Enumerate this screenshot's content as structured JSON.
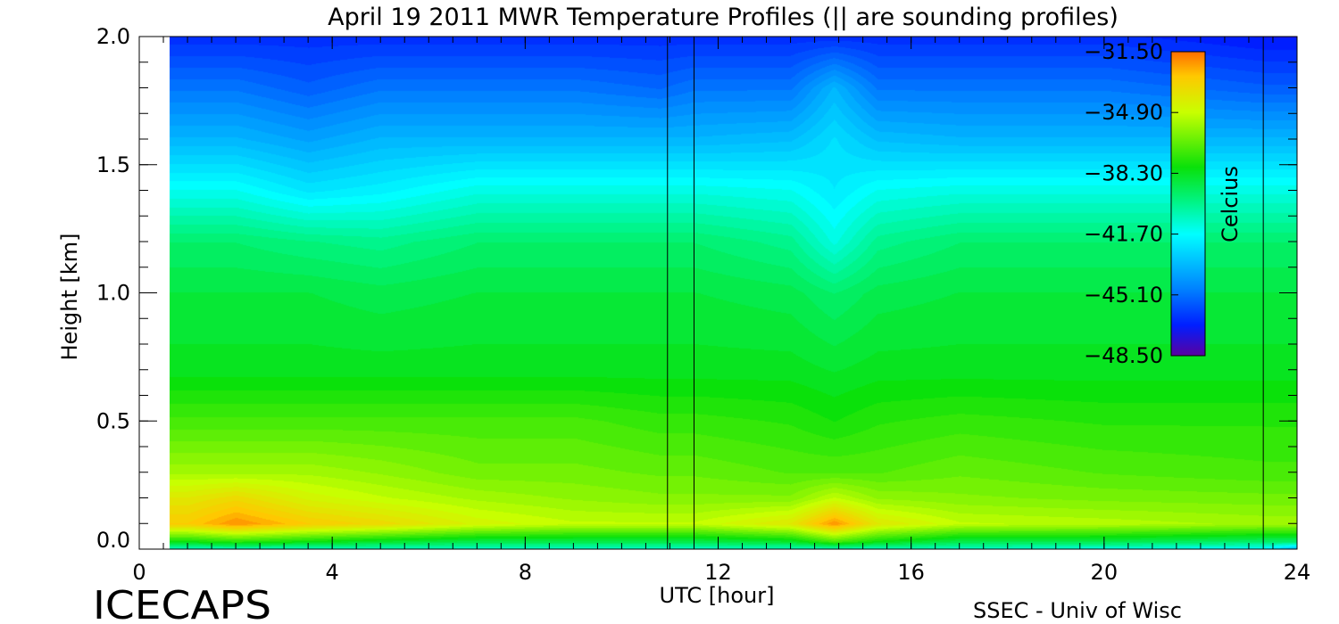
{
  "chart_data": {
    "type": "heatmap",
    "title": "April 19 2011 MWR Temperature Profiles (|| are sounding profiles)",
    "xlabel": "UTC [hour]",
    "ylabel": "Height [km]",
    "xlim": [
      0,
      24
    ],
    "ylim": [
      0,
      2
    ],
    "x_ticks": [
      "0",
      "4",
      "8",
      "12",
      "16",
      "20",
      "24"
    ],
    "y_ticks": [
      "0.0",
      "0.5",
      "1.0",
      "1.5",
      "2.0"
    ],
    "x_minor_step_hours": 0.5,
    "y_minor_step_km": 0.1,
    "data_x_range": [
      0.7,
      24
    ],
    "colorbar": {
      "label": "Celcius",
      "range": [
        -48.5,
        -31.5
      ],
      "ticks": [
        "-31.50",
        "-34.90",
        "-38.30",
        "-41.70",
        "-45.10",
        "-48.50"
      ]
    },
    "sounding_profiles": [
      {
        "x_start": 10.95,
        "x_end": 11.5
      },
      {
        "x_start": 23.3,
        "x_end": 24
      }
    ],
    "temperature_profiles": {
      "height_km": [
        0,
        0.03,
        0.1,
        0.2,
        0.3,
        0.5,
        0.7,
        1.0,
        1.2,
        1.4,
        1.6,
        1.8,
        2.0
      ],
      "times": [
        {
          "hour": 1,
          "temps": [
            -41,
            -38,
            -33,
            -34,
            -35.5,
            -37,
            -38.3,
            -38.8,
            -39.5,
            -41.5,
            -43.5,
            -45,
            -46.5
          ]
        },
        {
          "hour": 2,
          "temps": [
            -41,
            -37.5,
            -32,
            -33.5,
            -35.5,
            -37,
            -38.3,
            -38.8,
            -39.5,
            -41.5,
            -43.5,
            -45,
            -46.5
          ]
        },
        {
          "hour": 3.5,
          "temps": [
            -41,
            -38,
            -33,
            -34.5,
            -35.5,
            -37,
            -38.3,
            -38.8,
            -39.8,
            -42.3,
            -44,
            -45.5,
            -46.5
          ]
        },
        {
          "hour": 5,
          "temps": [
            -41,
            -38.5,
            -33.5,
            -35,
            -35.8,
            -37,
            -38.3,
            -39,
            -40,
            -42,
            -43.5,
            -45,
            -46.5
          ]
        },
        {
          "hour": 7,
          "temps": [
            -41,
            -39,
            -34.5,
            -35.5,
            -36.3,
            -37,
            -38.3,
            -38.8,
            -39.5,
            -41.3,
            -43.5,
            -45,
            -46.5
          ]
        },
        {
          "hour": 9,
          "temps": [
            -41,
            -39,
            -35,
            -35.8,
            -36.3,
            -37,
            -38.3,
            -38.8,
            -39.5,
            -41.3,
            -43.5,
            -45,
            -46.5
          ]
        },
        {
          "hour": 10.8,
          "temps": [
            -41,
            -39,
            -35,
            -36,
            -36.5,
            -37.3,
            -38.3,
            -38.8,
            -39.5,
            -41.3,
            -43.5,
            -45.3,
            -46.5
          ]
        },
        {
          "hour": 11.5,
          "temps": [
            -41,
            -39,
            -35,
            -36,
            -36.5,
            -37.3,
            -38.3,
            -38.8,
            -39.5,
            -41.3,
            -43.5,
            -45,
            -46.5
          ]
        },
        {
          "hour": 13.5,
          "temps": [
            -41,
            -38.5,
            -34,
            -36,
            -36.8,
            -37.5,
            -38.3,
            -39,
            -40,
            -41.5,
            -43.3,
            -45,
            -46.5
          ]
        },
        {
          "hour": 14.4,
          "temps": [
            -41,
            -37,
            -32,
            -35,
            -36.8,
            -37.8,
            -38.5,
            -39.5,
            -41.3,
            -42.2,
            -42.5,
            -43.5,
            -46.5
          ]
        },
        {
          "hour": 15.3,
          "temps": [
            -41,
            -38,
            -34,
            -35.8,
            -36.8,
            -37.5,
            -38.3,
            -39,
            -40,
            -41.5,
            -43.3,
            -45,
            -46.5
          ]
        },
        {
          "hour": 17,
          "temps": [
            -41,
            -39,
            -35,
            -36,
            -36.5,
            -37.3,
            -38.3,
            -38.8,
            -39.5,
            -41.3,
            -43.5,
            -45,
            -46.5
          ]
        },
        {
          "hour": 20,
          "temps": [
            -41.5,
            -39,
            -35.2,
            -36.2,
            -36.8,
            -37.5,
            -38.3,
            -38.8,
            -39.5,
            -41.3,
            -43.5,
            -45,
            -46.5
          ]
        },
        {
          "hour": 23.3,
          "temps": [
            -42,
            -39.5,
            -35.5,
            -36.3,
            -37,
            -37.5,
            -38.3,
            -38.8,
            -39.5,
            -41.3,
            -43.5,
            -45.5,
            -47
          ]
        },
        {
          "hour": 24,
          "temps": [
            -44,
            -39.5,
            -35.5,
            -36.3,
            -37,
            -37.5,
            -38.3,
            -38.8,
            -39.5,
            -41.3,
            -43.5,
            -45.5,
            -47
          ]
        }
      ]
    }
  },
  "footer": {
    "left": "ICECAPS",
    "right": "SSEC - Univ of Wisc"
  }
}
